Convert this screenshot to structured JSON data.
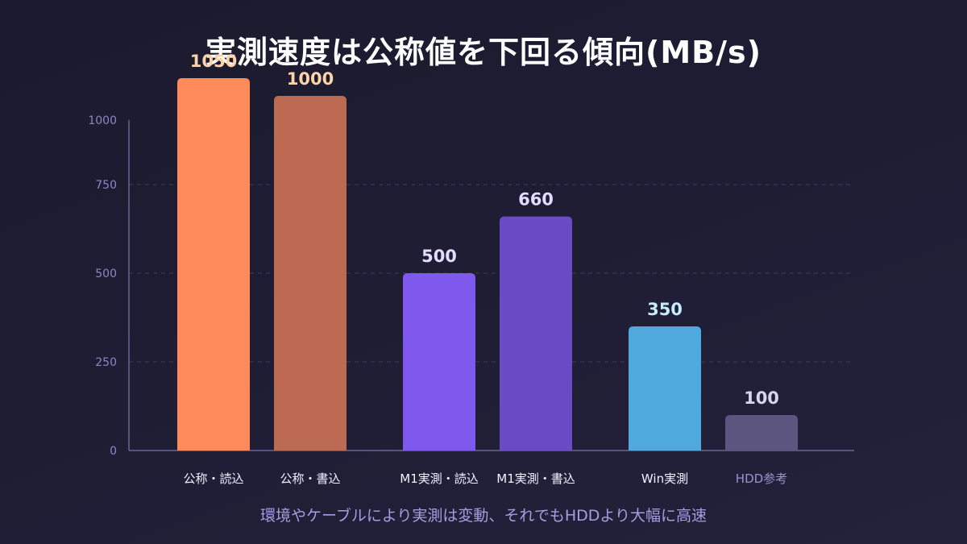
{
  "chart_data": {
    "type": "bar",
    "title": "実測速度は公称値を下回る傾向(MB/s)",
    "caption": "環境やケーブルにより実測は変動、それでもHDDより大幅に高速",
    "categories": [
      "公称・読込",
      "公称・書込",
      "M1実測・読込",
      "M1実測・書込",
      "Win実測",
      "HDD参考"
    ],
    "values": [
      1050,
      1000,
      500,
      660,
      350,
      100
    ],
    "value_labels": [
      "1050",
      "1000",
      "500",
      "660",
      "350",
      "100"
    ],
    "bar_colors": [
      "#ff8a5b",
      "#bc6b52",
      "#7f58ee",
      "#6a4bc4",
      "#4fa9dd",
      "#5b5580"
    ],
    "label_colors": [
      "#ffd3a8",
      "#ffd3a8",
      "#e3dcff",
      "#e3dcff",
      "#c6ecff",
      "#d8d4ee"
    ],
    "category_colors": [
      "#f2f0ff",
      "#f2f0ff",
      "#f2f0ff",
      "#f2f0ff",
      "#f2f0ff",
      "#9a92d0"
    ],
    "y_ticks": [
      "0",
      "250",
      "500",
      "750",
      "1000"
    ],
    "ylim": [
      0,
      1000
    ],
    "grid": true,
    "xlabel": "",
    "ylabel": ""
  }
}
